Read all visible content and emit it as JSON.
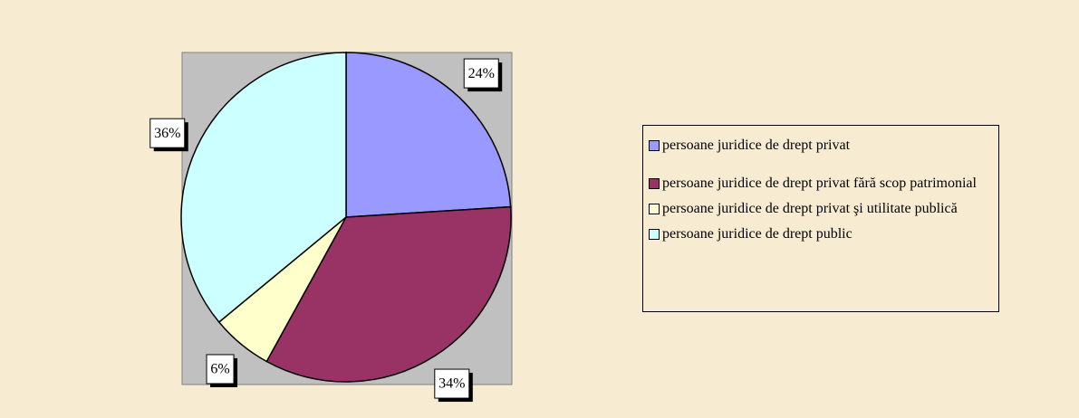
{
  "chart_data": {
    "type": "pie",
    "categories": [
      "persoane juridice de drept privat",
      "persoane juridice de drept privat fără scop patrimonial",
      "persoane juridice de drept privat şi utilitate publică",
      "persoane juridice de drept public"
    ],
    "values": [
      24,
      34,
      6,
      36
    ],
    "value_labels": [
      "24%",
      "34%",
      "6%",
      "36%"
    ],
    "colors": [
      "#9999ff",
      "#993366",
      "#ffffcc",
      "#ccffff"
    ],
    "legend": "right"
  }
}
